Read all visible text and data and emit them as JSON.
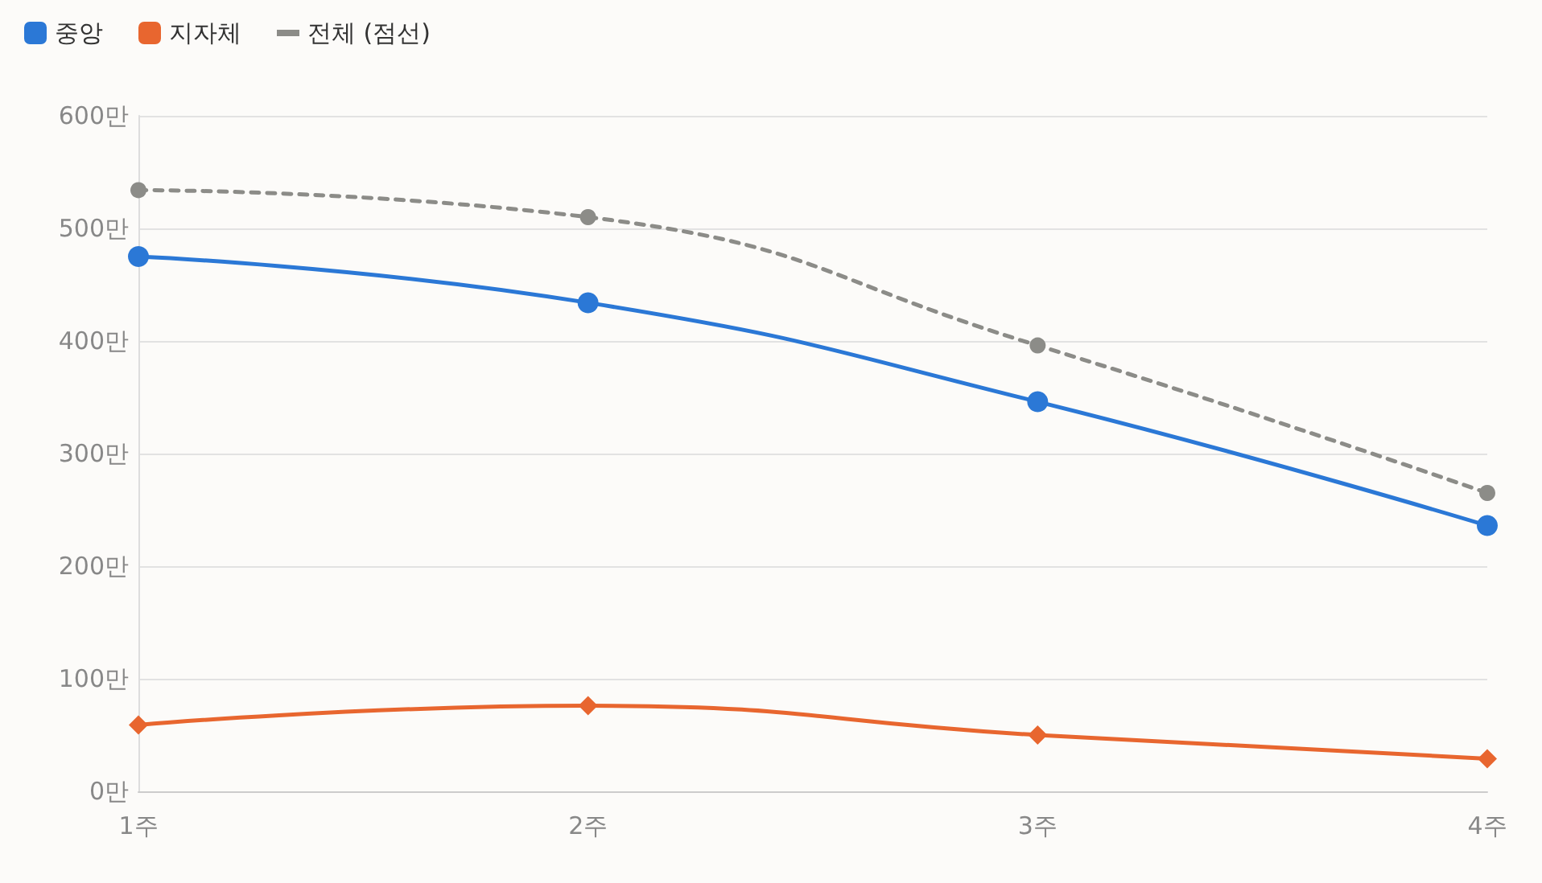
{
  "chart_data": {
    "type": "line",
    "categories": [
      "1주",
      "2주",
      "3주",
      "4주"
    ],
    "series": [
      {
        "name": "중앙",
        "color": "#2b78d6",
        "values": [
          475,
          434,
          346,
          236
        ],
        "marker": "circle",
        "line_style": "solid"
      },
      {
        "name": "지자체",
        "color": "#e8662f",
        "values": [
          59,
          76,
          50,
          29
        ],
        "marker": "diamond",
        "line_style": "solid"
      },
      {
        "name": "전체 (점선)",
        "color": "#8c8c88",
        "values": [
          534,
          510,
          396,
          265
        ],
        "marker": "circle",
        "line_style": "dashed"
      }
    ],
    "ylim": [
      0,
      600
    ],
    "yticks": [
      {
        "value": 0,
        "label": "0만"
      },
      {
        "value": 100,
        "label": "100만"
      },
      {
        "value": 200,
        "label": "200만"
      },
      {
        "value": 300,
        "label": "300만"
      },
      {
        "value": 400,
        "label": "400만"
      },
      {
        "value": 500,
        "label": "500만"
      },
      {
        "value": 600,
        "label": "600만"
      }
    ],
    "grid": "y",
    "legend": "top left"
  }
}
